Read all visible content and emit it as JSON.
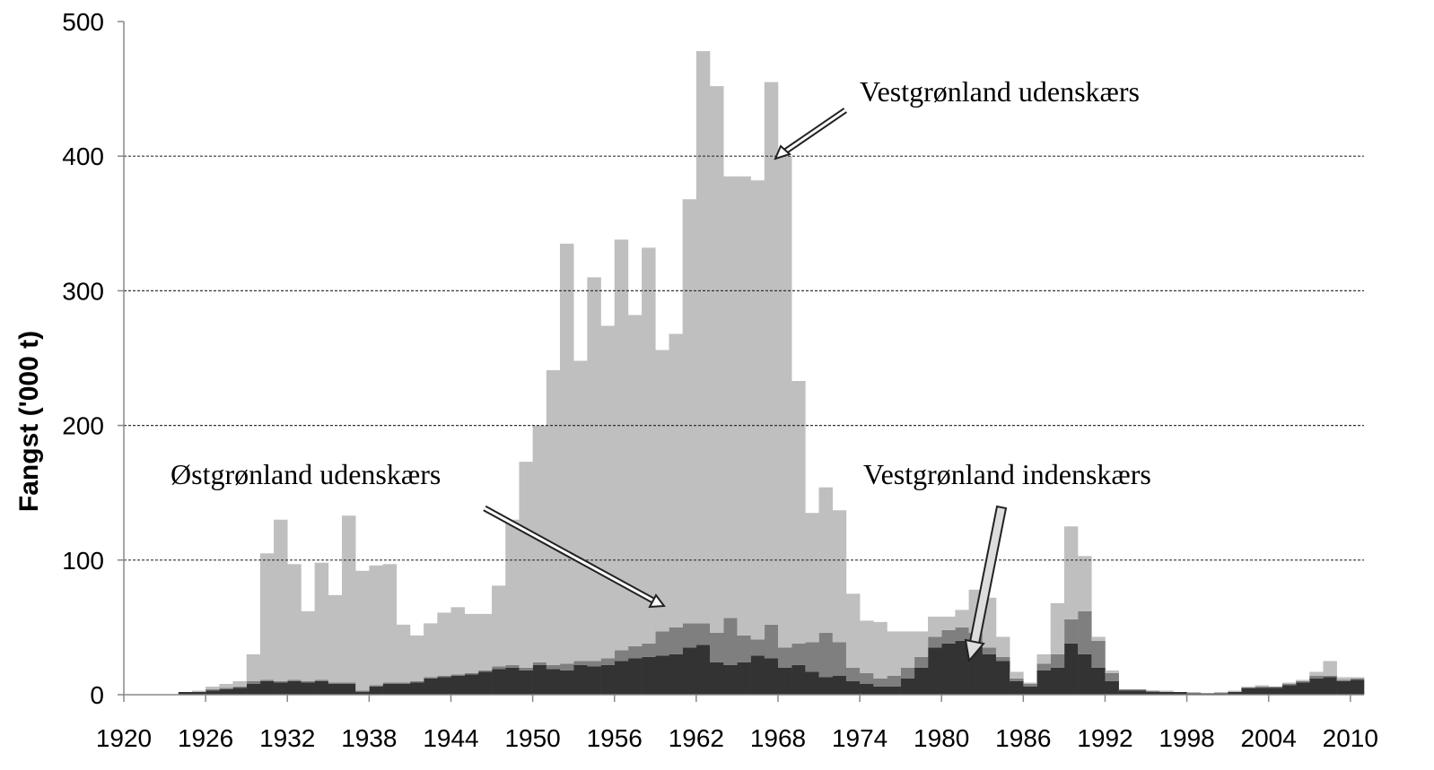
{
  "chart_data": {
    "type": "stacked-bar",
    "y_label": "Fangst  ('000 t)",
    "x": [
      1920,
      1921,
      1922,
      1923,
      1924,
      1925,
      1926,
      1927,
      1928,
      1929,
      1930,
      1931,
      1932,
      1933,
      1934,
      1935,
      1936,
      1937,
      1938,
      1939,
      1940,
      1941,
      1942,
      1943,
      1944,
      1945,
      1946,
      1947,
      1948,
      1949,
      1950,
      1951,
      1952,
      1953,
      1954,
      1955,
      1956,
      1957,
      1958,
      1959,
      1960,
      1961,
      1962,
      1963,
      1964,
      1965,
      1966,
      1967,
      1968,
      1969,
      1970,
      1971,
      1972,
      1973,
      1974,
      1975,
      1976,
      1977,
      1978,
      1979,
      1980,
      1981,
      1982,
      1983,
      1984,
      1985,
      1986,
      1987,
      1988,
      1989,
      1990,
      1991,
      1992,
      1993,
      1994,
      1995,
      1996,
      1997,
      1998,
      1999,
      2000,
      2001,
      2002,
      2003,
      2004,
      2005,
      2006,
      2007,
      2008,
      2009,
      2010
    ],
    "series": [
      {
        "name": "Vestgrønland indenskærs",
        "color": "#333333",
        "values": [
          0,
          0,
          0,
          0,
          2,
          2,
          3,
          4,
          5,
          8,
          10,
          9,
          10,
          9,
          10,
          8,
          8,
          2,
          6,
          8,
          8,
          9,
          12,
          13,
          14,
          15,
          17,
          19,
          20,
          18,
          22,
          19,
          18,
          22,
          21,
          22,
          25,
          27,
          28,
          29,
          30,
          35,
          37,
          24,
          22,
          24,
          29,
          27,
          20,
          22,
          17,
          13,
          14,
          10,
          8,
          6,
          6,
          12,
          20,
          35,
          38,
          40,
          38,
          30,
          25,
          10,
          6,
          18,
          20,
          38,
          30,
          20,
          10,
          3,
          3,
          2,
          2,
          2,
          1,
          1,
          1,
          2,
          5,
          5,
          5,
          7,
          9,
          12,
          13,
          10,
          11
        ]
      },
      {
        "name": "Østgrønland udenskærs",
        "color": "#7f7f7f",
        "values": [
          0,
          0,
          0,
          0,
          0,
          0,
          1,
          1,
          1,
          2,
          1,
          1,
          1,
          1,
          1,
          1,
          1,
          1,
          1,
          1,
          1,
          1,
          1,
          1,
          1,
          1,
          1,
          2,
          2,
          2,
          2,
          3,
          5,
          3,
          4,
          5,
          8,
          9,
          10,
          18,
          20,
          18,
          16,
          22,
          35,
          20,
          12,
          25,
          15,
          16,
          22,
          33,
          25,
          10,
          8,
          6,
          8,
          8,
          8,
          8,
          10,
          10,
          8,
          5,
          3,
          2,
          2,
          5,
          10,
          18,
          32,
          20,
          6,
          1,
          1,
          1,
          0,
          0,
          0,
          0,
          0,
          0,
          0,
          1,
          1,
          1,
          1,
          2,
          1,
          1,
          1
        ]
      },
      {
        "name": "Vestgrønland udenskærs",
        "color": "#bfbfbf",
        "values": [
          0,
          0,
          0,
          0,
          0,
          1,
          2,
          3,
          4,
          20,
          94,
          120,
          86,
          52,
          87,
          65,
          124,
          89,
          89,
          88,
          43,
          34,
          40,
          47,
          50,
          44,
          42,
          60,
          108,
          153,
          176,
          219,
          312,
          223,
          285,
          247,
          305,
          246,
          294,
          209,
          218,
          315,
          425,
          406,
          328,
          341,
          341,
          403,
          365,
          195,
          96,
          108,
          98,
          55,
          39,
          42,
          33,
          27,
          19,
          15,
          10,
          13,
          32,
          37,
          15,
          5,
          1,
          7,
          38,
          69,
          41,
          3,
          2,
          0,
          0,
          0,
          1,
          0,
          1,
          0,
          1,
          1,
          1,
          1,
          0,
          1,
          1,
          3,
          11,
          2,
          1
        ]
      }
    ],
    "xlim": [
      1920,
      2011
    ],
    "xticks": [
      1920,
      1926,
      1932,
      1938,
      1944,
      1950,
      1956,
      1962,
      1968,
      1974,
      1980,
      1986,
      1992,
      1998,
      2004,
      2010
    ],
    "ylim": [
      0,
      500
    ],
    "yticks": [
      0,
      100,
      200,
      300,
      400,
      500
    ],
    "grid": true
  }
}
